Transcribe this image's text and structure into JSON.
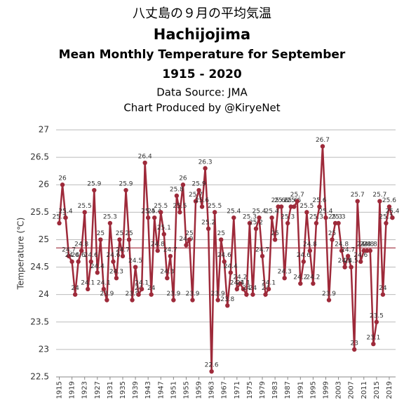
{
  "chart_data": {
    "type": "line",
    "title": "八丈島の９月の平均気温",
    "subtitle": [
      "Hachijojima",
      "Mean Monthly Temperature for September",
      "1915 - 2020",
      "Data Source: JMA",
      "Chart Produced by @KiryeNet"
    ],
    "y_label": "Temperature (℃)",
    "x": [
      1915,
      1916,
      1917,
      1918,
      1919,
      1920,
      1921,
      1922,
      1923,
      1924,
      1925,
      1926,
      1927,
      1928,
      1929,
      1930,
      1931,
      1932,
      1933,
      1934,
      1935,
      1936,
      1937,
      1938,
      1939,
      1940,
      1941,
      1942,
      1943,
      1944,
      1945,
      1946,
      1947,
      1948,
      1949,
      1950,
      1951,
      1952,
      1953,
      1954,
      1955,
      1956,
      1957,
      1958,
      1959,
      1960,
      1961,
      1962,
      1963,
      1964,
      1965,
      1966,
      1967,
      1968,
      1969,
      1970,
      1971,
      1972,
      1973,
      1974,
      1975,
      1976,
      1977,
      1978,
      1979,
      1980,
      1981,
      1982,
      1983,
      1984,
      1985,
      1986,
      1987,
      1988,
      1989,
      1990,
      1991,
      1992,
      1993,
      1994,
      1995,
      1996,
      1997,
      1998,
      1999,
      2000,
      2001,
      2002,
      2003,
      2004,
      2005,
      2006,
      2007,
      2008,
      2009,
      2010,
      2011,
      2012,
      2013,
      2014,
      2015,
      2016,
      2017,
      2018,
      2019,
      2020
    ],
    "series": [
      {
        "name": "Hachijojima",
        "color": "#9e2a3a",
        "values": [
          25.3,
          26,
          25.4,
          24.7,
          24.6,
          24,
          24.6,
          24.8,
          25.5,
          24.1,
          24.6,
          25.9,
          24.4,
          25,
          24.1,
          23.9,
          25.3,
          24.6,
          24.3,
          25,
          24.7,
          25.9,
          25,
          23.9,
          24.5,
          24,
          24.1,
          26.4,
          25.4,
          24,
          25.4,
          24.8,
          25.5,
          25.1,
          24.3,
          24.7,
          23.9,
          25.8,
          25.5,
          26,
          24.9,
          25,
          23.9,
          25.7,
          25.9,
          25.6,
          26.3,
          25.2,
          22.6,
          25.5,
          23.9,
          25,
          24.6,
          23.8,
          24.4,
          25.4,
          24.1,
          24.2,
          24.1,
          24,
          25.3,
          24,
          25.2,
          25.4,
          24.7,
          24,
          24.1,
          25.4,
          25,
          25.6,
          25.6,
          24.3,
          25.3,
          25.6,
          25.6,
          25.7,
          24.2,
          24.6,
          25.5,
          24.8,
          24.2,
          25.3,
          25.6,
          26.7,
          25.4,
          23.9,
          25,
          25.3,
          25.3,
          24.8,
          24.5,
          24.7,
          24.5,
          23,
          25.7,
          24.6,
          24.8,
          24.8,
          24.8,
          23.1,
          23.5,
          25.7,
          24,
          25.3,
          25.6,
          25.4
        ]
      }
    ],
    "mean_line": 24.85,
    "xlim": [
      1914,
      2021
    ],
    "xticks": [
      1915,
      1919,
      1923,
      1927,
      1931,
      1935,
      1939,
      1943,
      1947,
      1951,
      1955,
      1959,
      1963,
      1967,
      1971,
      1975,
      1979,
      1983,
      1987,
      1991,
      1995,
      1999,
      2003,
      2007,
      2011,
      2015,
      2019
    ],
    "ylim": [
      22.5,
      27
    ],
    "yticks": [
      22.5,
      23,
      23.5,
      24,
      24.5,
      25,
      25.5,
      26,
      26.5,
      27
    ],
    "grid": true
  }
}
